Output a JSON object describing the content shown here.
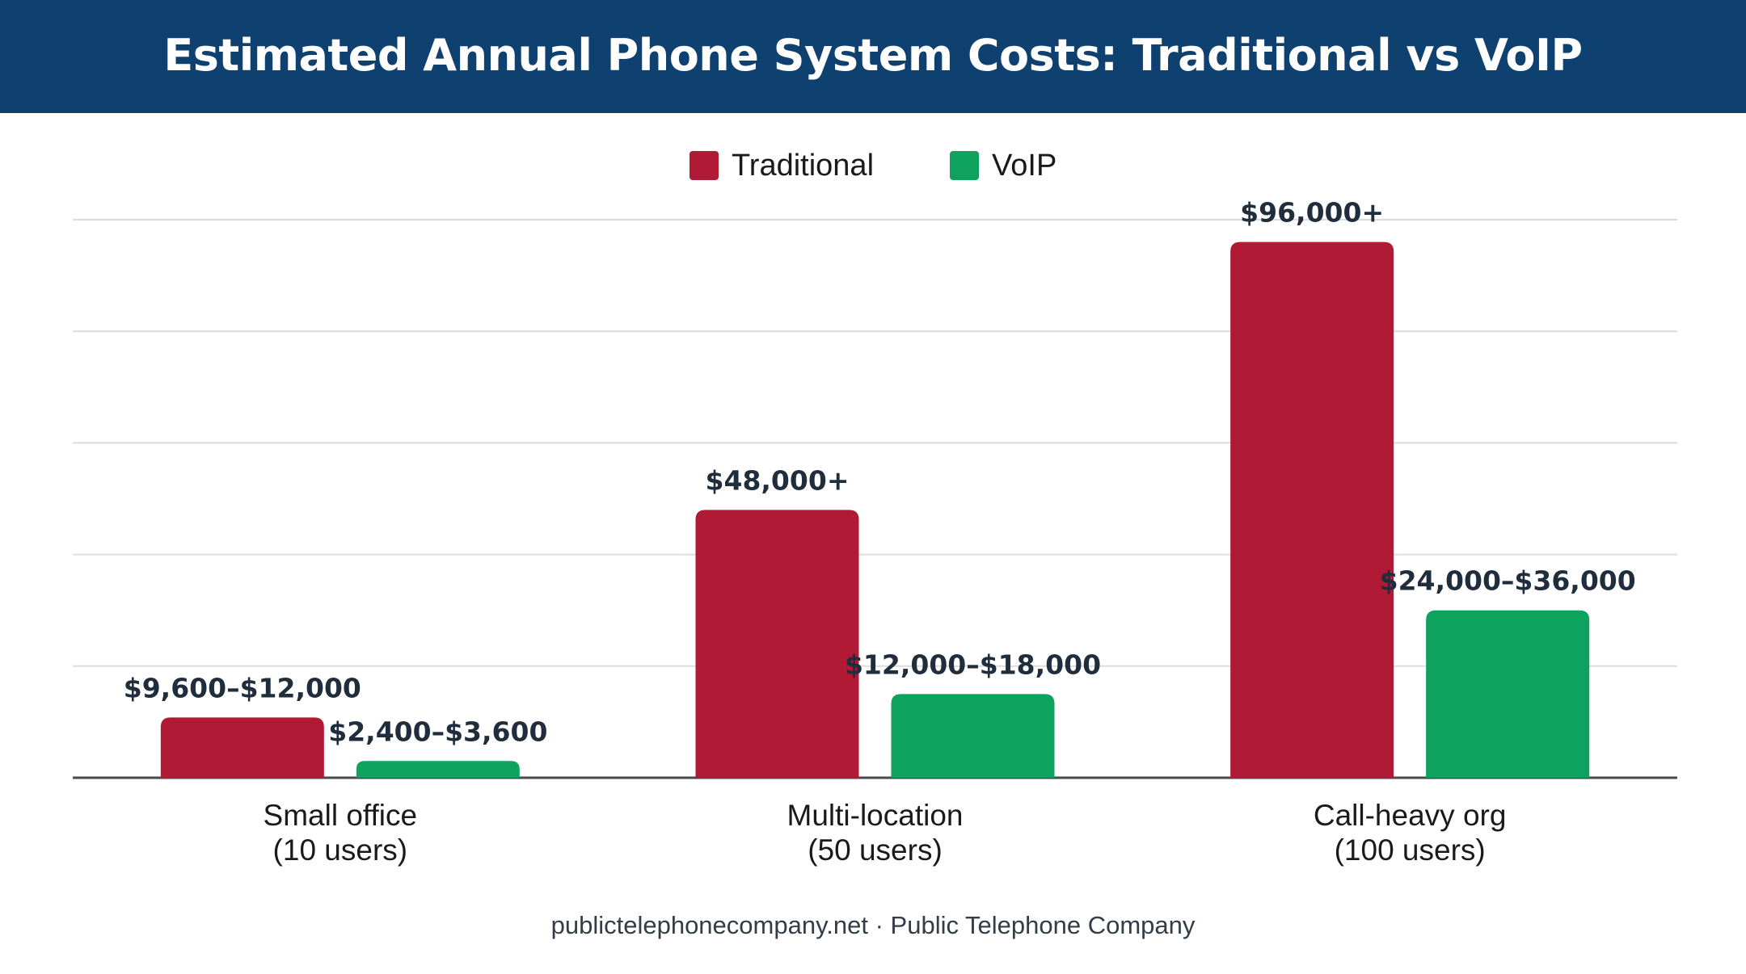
{
  "chart_data": {
    "type": "bar",
    "title": "Estimated Annual Phone System Costs: Traditional vs VoIP",
    "categories": [
      "Small office\n(10 users)",
      "Multi-location\n(50 users)",
      "Call-heavy org\n(100 users)"
    ],
    "series": [
      {
        "name": "Traditional",
        "color": "#b01a35",
        "values": [
          10800,
          48000,
          96000
        ],
        "labels": [
          "$9,600–$12,000",
          "$48,000+",
          "$96,000+"
        ]
      },
      {
        "name": "VoIP",
        "color": "#0ea25f",
        "values": [
          3000,
          15000,
          30000
        ],
        "labels": [
          "$2,400–$3,600",
          "$12,000–$18,000",
          "$24,000–$36,000"
        ]
      }
    ],
    "ylim": [
      0,
      100000
    ],
    "grid": true,
    "legend": "top-center",
    "xlabel": "",
    "ylabel": ""
  },
  "footer": "publictelephonecompany.net · Public Telephone Company",
  "colors": {
    "header_bg": "#0f4170",
    "label_text": "#1f2d3d",
    "grid": "#dcdcdc",
    "axis": "#4a4a4a"
  }
}
